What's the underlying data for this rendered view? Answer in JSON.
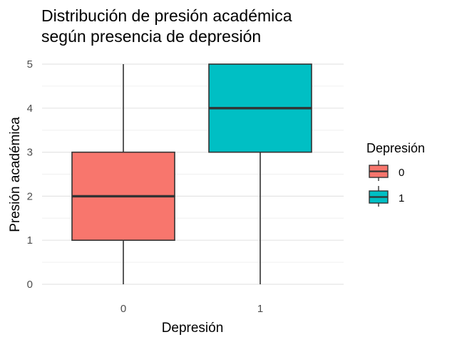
{
  "chart_data": {
    "type": "boxplot",
    "title_lines": [
      "Distribución de presión académica",
      "según presencia de depresión"
    ],
    "xlabel": "Depresión",
    "ylabel": "Presión académica",
    "categories": [
      "0",
      "1"
    ],
    "boxes": [
      {
        "category": "0",
        "min": 0,
        "q1": 1,
        "median": 2,
        "q3": 3,
        "max": 5,
        "color": "#F8766D"
      },
      {
        "category": "1",
        "min": 0,
        "q1": 3,
        "median": 4,
        "q3": 5,
        "max": 5,
        "color": "#00BFC4"
      }
    ],
    "y_ticks": [
      "0",
      "1",
      "2",
      "3",
      "4",
      "5"
    ],
    "ylim": [
      0,
      5
    ],
    "grid": true,
    "legend": {
      "title": "Depresión",
      "position": "right",
      "entries": [
        "0",
        "1"
      ]
    }
  }
}
